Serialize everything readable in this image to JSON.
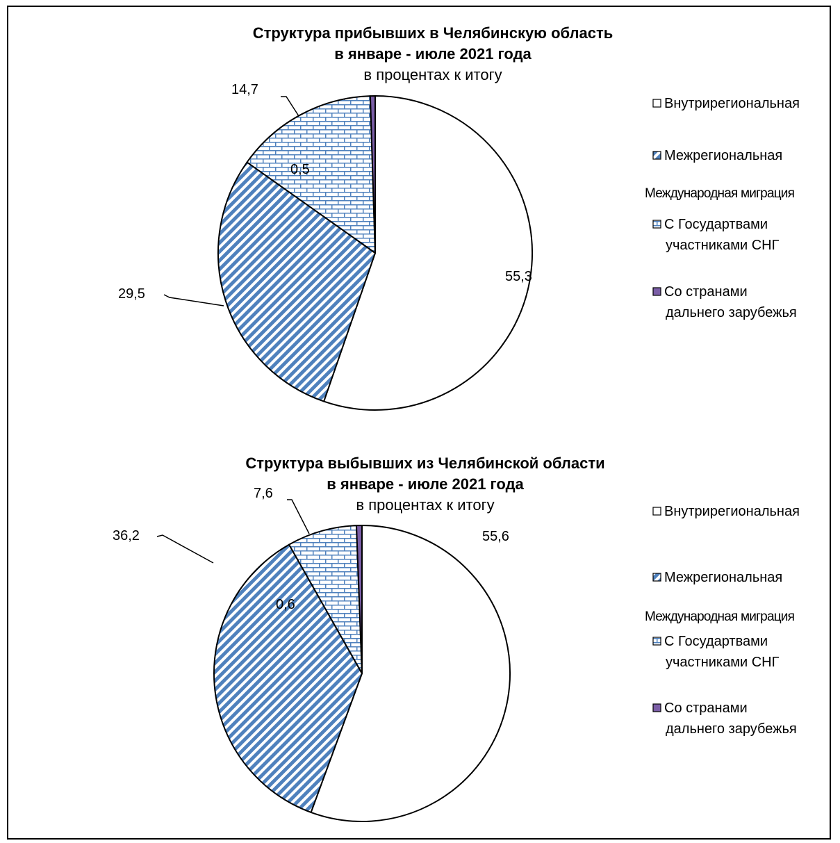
{
  "colors": {
    "intra": "#ffffff",
    "inter": "#4f81bd",
    "cis": "#4f81bd",
    "far": "#7b5ea7",
    "outline": "#000000"
  },
  "legend": {
    "items": [
      {
        "key": "intra",
        "lines": [
          "Внутрирегиональная"
        ]
      },
      {
        "key": "inter",
        "lines": [
          "Межрегиональная"
        ]
      },
      {
        "key": "cis",
        "lines": [
          "С Государтвами",
          "участниками СНГ"
        ]
      },
      {
        "key": "far",
        "lines": [
          "Со странами",
          "дальнего зарубежья"
        ]
      }
    ],
    "group_label": "Международная миграция"
  },
  "chart_data": [
    {
      "type": "pie",
      "title_line1": "Структура прибывших в Челябинскую область",
      "title_line2": "в январе - июле 2021 года",
      "subtitle": "в процентах к итогу",
      "slices": [
        {
          "key": "intra",
          "value": 55.3,
          "label": "55,3"
        },
        {
          "key": "inter",
          "value": 29.5,
          "label": "29,5"
        },
        {
          "key": "cis",
          "value": 14.7,
          "label": "14,7"
        },
        {
          "key": "far",
          "value": 0.5,
          "label": "0,5"
        }
      ]
    },
    {
      "type": "pie",
      "title_line1": "Структура выбывших из  Челябинской области",
      "title_line2": "в январе - июле 2021 года",
      "subtitle": "в процентах к итогу",
      "slices": [
        {
          "key": "intra",
          "value": 55.6,
          "label": "55,6"
        },
        {
          "key": "inter",
          "value": 36.2,
          "label": "36,2"
        },
        {
          "key": "cis",
          "value": 7.6,
          "label": "7,6"
        },
        {
          "key": "far",
          "value": 0.6,
          "label": "0,6"
        }
      ]
    }
  ]
}
